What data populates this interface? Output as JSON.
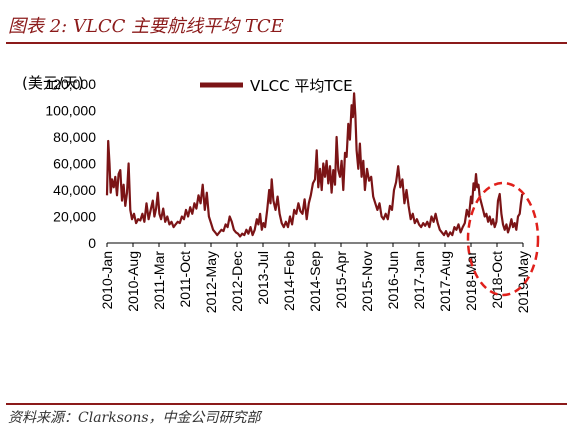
{
  "header": {
    "title": "图表 2: VLCC 主要航线平均 TCE"
  },
  "footer": {
    "source": "资料来源：Clarksons，中金公司研究部"
  },
  "chart_data": {
    "type": "line",
    "unit_label": "(美元/天)",
    "ylim": [
      0,
      120000
    ],
    "yticks": [
      "120,000",
      "100,000",
      "80,000",
      "60,000",
      "40,000",
      "20,000",
      "0"
    ],
    "yticks_values": [
      120000,
      100000,
      80000,
      60000,
      40000,
      20000,
      0
    ],
    "categories": [
      "2010-Jan",
      "2010-Aug",
      "2011-Mar",
      "2011-Oct",
      "2012-May",
      "2012-Dec",
      "2013-Jul",
      "2014-Feb",
      "2014-Sep",
      "2015-Apr",
      "2015-Nov",
      "2016-Jun",
      "2017-Jan",
      "2017-Aug",
      "2018-Mar",
      "2018-Oct",
      "2019-May"
    ],
    "legend": "top-center",
    "annotation": "dashed red ellipse around 2018-Oct to 2019-May",
    "series": [
      {
        "name": "VLCC 平均TCE",
        "color": "#7B1416",
        "values": [
          [
            2010.0,
            36000
          ],
          [
            2010.03,
            77000
          ],
          [
            2010.06,
            60000
          ],
          [
            2010.09,
            38000
          ],
          [
            2010.12,
            48000
          ],
          [
            2010.16,
            42000
          ],
          [
            2010.2,
            50000
          ],
          [
            2010.24,
            36000
          ],
          [
            2010.28,
            52000
          ],
          [
            2010.32,
            55000
          ],
          [
            2010.36,
            32000
          ],
          [
            2010.4,
            44000
          ],
          [
            2010.44,
            28000
          ],
          [
            2010.48,
            38000
          ],
          [
            2010.52,
            60000
          ],
          [
            2010.56,
            25000
          ],
          [
            2010.6,
            18000
          ],
          [
            2010.65,
            22000
          ],
          [
            2010.7,
            15000
          ],
          [
            2010.75,
            18000
          ],
          [
            2010.8,
            17000
          ],
          [
            2010.85,
            22000
          ],
          [
            2010.9,
            16000
          ],
          [
            2010.95,
            30000
          ],
          [
            2011.0,
            18000
          ],
          [
            2011.05,
            25000
          ],
          [
            2011.1,
            32000
          ],
          [
            2011.14,
            20000
          ],
          [
            2011.18,
            26000
          ],
          [
            2011.22,
            38000
          ],
          [
            2011.26,
            22000
          ],
          [
            2011.3,
            18000
          ],
          [
            2011.35,
            26000
          ],
          [
            2011.4,
            16000
          ],
          [
            2011.45,
            20000
          ],
          [
            2011.5,
            14000
          ],
          [
            2011.55,
            16000
          ],
          [
            2011.6,
            12000
          ],
          [
            2011.65,
            14000
          ],
          [
            2011.7,
            16000
          ],
          [
            2011.75,
            15000
          ],
          [
            2011.8,
            20000
          ],
          [
            2011.85,
            18000
          ],
          [
            2011.9,
            25000
          ],
          [
            2011.95,
            20000
          ],
          [
            2012.0,
            27000
          ],
          [
            2012.05,
            22000
          ],
          [
            2012.1,
            30000
          ],
          [
            2012.15,
            26000
          ],
          [
            2012.2,
            36000
          ],
          [
            2012.25,
            30000
          ],
          [
            2012.3,
            44000
          ],
          [
            2012.35,
            25000
          ],
          [
            2012.4,
            38000
          ],
          [
            2012.45,
            20000
          ],
          [
            2012.5,
            15000
          ],
          [
            2012.55,
            10000
          ],
          [
            2012.6,
            8000
          ],
          [
            2012.65,
            6000
          ],
          [
            2012.7,
            8000
          ],
          [
            2012.75,
            10000
          ],
          [
            2012.8,
            9000
          ],
          [
            2012.85,
            14000
          ],
          [
            2012.9,
            12000
          ],
          [
            2012.95,
            20000
          ],
          [
            2013.0,
            16000
          ],
          [
            2013.05,
            10000
          ],
          [
            2013.1,
            8000
          ],
          [
            2013.15,
            7000
          ],
          [
            2013.2,
            5000
          ],
          [
            2013.25,
            7000
          ],
          [
            2013.3,
            6000
          ],
          [
            2013.35,
            10000
          ],
          [
            2013.4,
            7000
          ],
          [
            2013.45,
            12000
          ],
          [
            2013.5,
            6000
          ],
          [
            2013.55,
            10000
          ],
          [
            2013.6,
            18000
          ],
          [
            2013.64,
            14000
          ],
          [
            2013.68,
            22000
          ],
          [
            2013.72,
            10000
          ],
          [
            2013.76,
            15000
          ],
          [
            2013.8,
            12000
          ],
          [
            2013.85,
            25000
          ],
          [
            2013.9,
            40000
          ],
          [
            2013.93,
            30000
          ],
          [
            2013.96,
            48000
          ],
          [
            2014.0,
            32000
          ],
          [
            2014.05,
            25000
          ],
          [
            2014.1,
            35000
          ],
          [
            2014.15,
            22000
          ],
          [
            2014.2,
            15000
          ],
          [
            2014.25,
            12000
          ],
          [
            2014.3,
            16000
          ],
          [
            2014.35,
            12000
          ],
          [
            2014.4,
            20000
          ],
          [
            2014.45,
            14000
          ],
          [
            2014.5,
            25000
          ],
          [
            2014.55,
            22000
          ],
          [
            2014.6,
            30000
          ],
          [
            2014.65,
            24000
          ],
          [
            2014.7,
            22000
          ],
          [
            2014.75,
            33000
          ],
          [
            2014.8,
            18000
          ],
          [
            2014.85,
            30000
          ],
          [
            2014.9,
            36000
          ],
          [
            2014.95,
            45000
          ],
          [
            2015.0,
            48000
          ],
          [
            2015.04,
            70000
          ],
          [
            2015.08,
            42000
          ],
          [
            2015.12,
            56000
          ],
          [
            2015.16,
            40000
          ],
          [
            2015.2,
            60000
          ],
          [
            2015.24,
            50000
          ],
          [
            2015.28,
            62000
          ],
          [
            2015.32,
            45000
          ],
          [
            2015.36,
            58000
          ],
          [
            2015.4,
            38000
          ],
          [
            2015.44,
            55000
          ],
          [
            2015.48,
            44000
          ],
          [
            2015.52,
            80000
          ],
          [
            2015.56,
            55000
          ],
          [
            2015.6,
            50000
          ],
          [
            2015.64,
            62000
          ],
          [
            2015.68,
            40000
          ],
          [
            2015.72,
            68000
          ],
          [
            2015.76,
            65000
          ],
          [
            2015.8,
            90000
          ],
          [
            2015.84,
            78000
          ],
          [
            2015.88,
            104000
          ],
          [
            2015.91,
            95000
          ],
          [
            2015.94,
            113000
          ],
          [
            2015.97,
            96000
          ],
          [
            2016.0,
            70000
          ],
          [
            2016.04,
            56000
          ],
          [
            2016.08,
            75000
          ],
          [
            2016.12,
            50000
          ],
          [
            2016.16,
            62000
          ],
          [
            2016.2,
            40000
          ],
          [
            2016.25,
            56000
          ],
          [
            2016.3,
            47000
          ],
          [
            2016.35,
            50000
          ],
          [
            2016.4,
            35000
          ],
          [
            2016.45,
            30000
          ],
          [
            2016.5,
            25000
          ],
          [
            2016.55,
            30000
          ],
          [
            2016.6,
            20000
          ],
          [
            2016.65,
            18000
          ],
          [
            2016.7,
            22000
          ],
          [
            2016.75,
            18000
          ],
          [
            2016.8,
            28000
          ],
          [
            2016.85,
            25000
          ],
          [
            2016.9,
            40000
          ],
          [
            2016.95,
            46000
          ],
          [
            2017.0,
            58000
          ],
          [
            2017.05,
            42000
          ],
          [
            2017.1,
            48000
          ],
          [
            2017.15,
            30000
          ],
          [
            2017.2,
            40000
          ],
          [
            2017.25,
            28000
          ],
          [
            2017.3,
            18000
          ],
          [
            2017.35,
            22000
          ],
          [
            2017.4,
            15000
          ],
          [
            2017.45,
            18000
          ],
          [
            2017.5,
            14000
          ],
          [
            2017.55,
            12000
          ],
          [
            2017.6,
            15000
          ],
          [
            2017.65,
            13000
          ],
          [
            2017.7,
            16000
          ],
          [
            2017.75,
            12000
          ],
          [
            2017.8,
            20000
          ],
          [
            2017.85,
            16000
          ],
          [
            2017.9,
            22000
          ],
          [
            2017.95,
            15000
          ],
          [
            2018.0,
            10000
          ],
          [
            2018.05,
            8000
          ],
          [
            2018.1,
            6000
          ],
          [
            2018.15,
            9000
          ],
          [
            2018.2,
            5000
          ],
          [
            2018.25,
            8000
          ],
          [
            2018.3,
            6000
          ],
          [
            2018.35,
            12000
          ],
          [
            2018.4,
            10000
          ],
          [
            2018.45,
            14000
          ],
          [
            2018.5,
            8000
          ],
          [
            2018.55,
            12000
          ],
          [
            2018.6,
            15000
          ],
          [
            2018.65,
            25000
          ],
          [
            2018.7,
            20000
          ],
          [
            2018.75,
            35000
          ],
          [
            2018.78,
            30000
          ],
          [
            2018.81,
            45000
          ],
          [
            2018.84,
            40000
          ],
          [
            2018.87,
            52000
          ],
          [
            2018.9,
            42000
          ],
          [
            2018.93,
            44000
          ],
          [
            2018.96,
            35000
          ],
          [
            2019.0,
            30000
          ],
          [
            2019.04,
            25000
          ],
          [
            2019.08,
            20000
          ],
          [
            2019.12,
            22000
          ],
          [
            2019.16,
            16000
          ],
          [
            2019.2,
            20000
          ],
          [
            2019.24,
            14000
          ],
          [
            2019.28,
            18000
          ],
          [
            2019.32,
            12000
          ],
          [
            2019.36,
            16000
          ],
          [
            2019.4,
            32000
          ],
          [
            2019.44,
            37000
          ],
          [
            2019.48,
            22000
          ],
          [
            2019.52,
            14000
          ],
          [
            2019.56,
            10000
          ],
          [
            2019.6,
            14000
          ],
          [
            2019.64,
            8000
          ],
          [
            2019.68,
            12000
          ],
          [
            2019.72,
            18000
          ],
          [
            2019.76,
            12000
          ],
          [
            2019.8,
            15000
          ],
          [
            2019.84,
            10000
          ],
          [
            2019.88,
            20000
          ],
          [
            2019.92,
            22000
          ],
          [
            2019.95,
            30000
          ],
          [
            2019.98,
            37000
          ]
        ]
      }
    ]
  }
}
